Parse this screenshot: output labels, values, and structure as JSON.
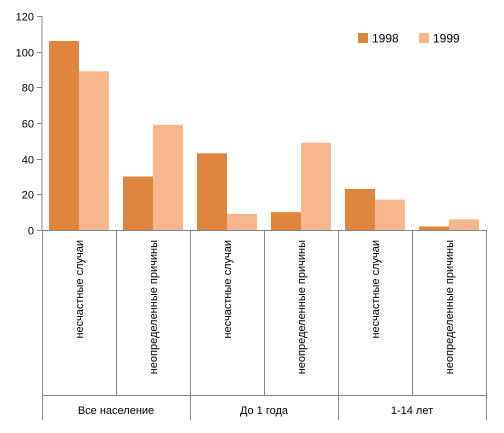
{
  "chart_data": {
    "type": "bar",
    "groups": [
      "Все население",
      "До 1 года",
      "1-14 лет"
    ],
    "categories": [
      "несчастные случаи",
      "неопределенные причины",
      "несчастные случаи",
      "неопределенные причины",
      "несчастные случаи",
      "неопределенные причины"
    ],
    "series": [
      {
        "name": "1998",
        "color": "#E0853D",
        "values": [
          106,
          30,
          43,
          10,
          23,
          2
        ]
      },
      {
        "name": "1999",
        "color": "#F8B68E",
        "values": [
          89,
          59,
          9,
          49,
          17,
          6
        ]
      }
    ],
    "ylim": [
      0,
      120
    ],
    "yticks": [
      0,
      20,
      40,
      60,
      80,
      100,
      120
    ],
    "grid": false,
    "legend_position": "top-right"
  }
}
